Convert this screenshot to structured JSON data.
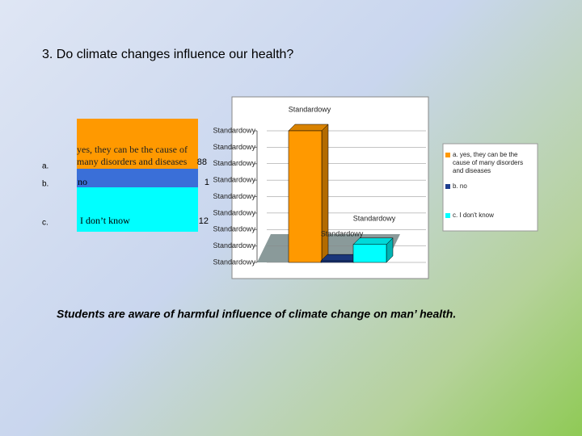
{
  "title": "3. Do climate changes influence our health?",
  "table": {
    "rows": [
      [
        "a.",
        "yes, they can be the cause of many disorders and diseases"
      ],
      [
        "b.",
        "no"
      ],
      [
        "c.",
        "I don’t know"
      ]
    ]
  },
  "caption": "Students are aware of harmful influence of climate change on man’ health.",
  "chart_data": {
    "type": "bar",
    "categories": [
      "a. yes, they can be the cause of many disorders and diseases",
      "b. no",
      "c.  I don't know"
    ],
    "values": [
      88,
      1,
      12
    ],
    "colors": [
      "#ff9900",
      "#1f3f8f",
      "#00ffff"
    ],
    "annotations": [
      "Standardowy",
      "Standardowy",
      "Standardowy"
    ],
    "ylim": [
      0,
      88
    ],
    "yticks": [
      {
        "value": 0,
        "label": "Standardowy"
      },
      {
        "value": 11,
        "label": "Standardowy"
      },
      {
        "value": 22,
        "label": "Standardowy"
      },
      {
        "value": 33,
        "label": "Standardowy"
      },
      {
        "value": 44,
        "label": "Standardowy"
      },
      {
        "value": 55,
        "label": "Standardowy"
      },
      {
        "value": 66,
        "label": "Standardowy"
      },
      {
        "value": 77,
        "label": "Standardowy"
      },
      {
        "value": 88,
        "label": "Standardowy"
      }
    ],
    "grid": true
  }
}
